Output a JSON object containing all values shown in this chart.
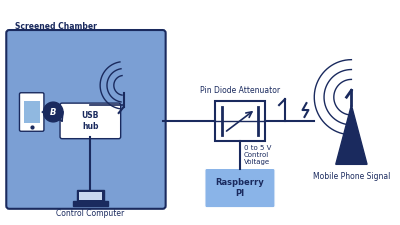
{
  "bg_color": "#ffffff",
  "chamber_color": "#7b9fd4",
  "chamber_edge": "#1a2a5e",
  "rpi_color": "#8ab4e8",
  "usb_color": "#ffffff",
  "att_color": "#ffffff",
  "navy": "#1a2a5e",
  "label_chamber": "Screened Chamber",
  "label_usb": "USB\nhub",
  "label_rpi": "Raspberry\nPI",
  "label_att": "Pin Diode Attenuator",
  "label_voltage": "0 to 5 V\nControl\nVoltage",
  "label_mobile": "Mobile Phone Signal",
  "label_computer": "Control Computer"
}
